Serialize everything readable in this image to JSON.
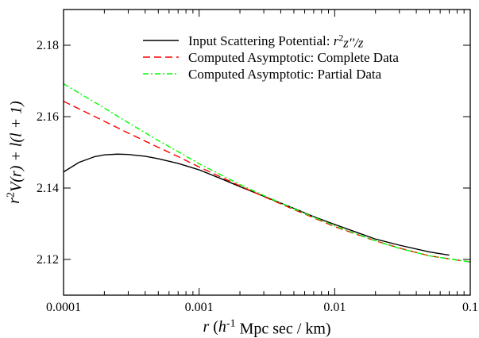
{
  "chart_data": {
    "type": "line",
    "xscale": "log",
    "xlim": [
      0.0001,
      0.1
    ],
    "ylim": [
      2.11,
      2.19
    ],
    "x_ticks": [
      0.0001,
      0.001,
      0.01,
      0.1
    ],
    "x_tick_labels": [
      "0.0001",
      "0.001",
      "0.01",
      "0.1"
    ],
    "y_ticks": [
      2.12,
      2.14,
      2.16,
      2.18
    ],
    "y_tick_labels": [
      "2.12",
      "2.14",
      "2.16",
      "2.18"
    ],
    "xlabel": {
      "parts": [
        {
          "text": "r",
          "italic": true
        },
        {
          "text": " (",
          "italic": false
        },
        {
          "text": "h",
          "italic": true
        },
        {
          "text": "-1",
          "sup": true
        },
        {
          "text": " Mpc sec / km)",
          "italic": false
        }
      ]
    },
    "ylabel": {
      "parts": [
        {
          "text": "r",
          "italic": true
        },
        {
          "text": "2",
          "sup": true
        },
        {
          "text": "V(r) + l(l + 1)",
          "italic": true
        }
      ]
    },
    "grid": false,
    "legend_position": "top-right",
    "series": [
      {
        "name": "Input Scattering Potential: r²z''/z",
        "legend_parts": [
          {
            "text": "Input Scattering Potential: ",
            "italic": false
          },
          {
            "text": "r",
            "italic": true
          },
          {
            "text": "2",
            "sup": true
          },
          {
            "text": "z''/z",
            "italic": true
          }
        ],
        "color": "#000000",
        "dash": "solid",
        "x": [
          0.0001,
          0.00013,
          0.00017,
          0.0002,
          0.00025,
          0.0003,
          0.0004,
          0.0005,
          0.0007,
          0.001,
          0.0015,
          0.002,
          0.003,
          0.005,
          0.007,
          0.01,
          0.015,
          0.02,
          0.03,
          0.05,
          0.07
        ],
        "y": [
          2.1445,
          2.1472,
          2.1488,
          2.1493,
          2.1495,
          2.1494,
          2.1489,
          2.1482,
          2.1469,
          2.1451,
          2.1424,
          2.1404,
          2.1377,
          2.1343,
          2.132,
          2.1298,
          2.1274,
          2.1257,
          2.124,
          2.1221,
          2.1212
        ]
      },
      {
        "name": "Computed Asymptotic: Complete Data",
        "legend_parts": [
          {
            "text": "Computed Asymptotic: Complete Data",
            "italic": false
          }
        ],
        "color": "#ff0000",
        "dash": "long-dash",
        "x": [
          0.0001,
          0.0002,
          0.0003,
          0.0005,
          0.0007,
          0.001,
          0.002,
          0.003,
          0.005,
          0.01,
          0.02,
          0.03,
          0.05,
          0.1
        ],
        "y": [
          2.1643,
          2.1587,
          2.1554,
          2.1514,
          2.1488,
          2.1459,
          2.1406,
          2.1376,
          2.134,
          2.1292,
          2.1252,
          2.1232,
          2.121,
          2.1193
        ]
      },
      {
        "name": "Computed Asymptotic: Partial Data",
        "legend_parts": [
          {
            "text": "Computed Asymptotic: Partial Data",
            "italic": false
          }
        ],
        "color": "#00ff00",
        "dash": "dash-dot",
        "x": [
          0.0001,
          0.0002,
          0.0003,
          0.0005,
          0.0007,
          0.001,
          0.002,
          0.003,
          0.005,
          0.01,
          0.02,
          0.03,
          0.05,
          0.1
        ],
        "y": [
          2.1692,
          2.1624,
          2.1583,
          2.1533,
          2.1502,
          2.1468,
          2.141,
          2.1379,
          2.1342,
          2.1294,
          2.1252,
          2.1231,
          2.121,
          2.1193
        ]
      }
    ]
  }
}
